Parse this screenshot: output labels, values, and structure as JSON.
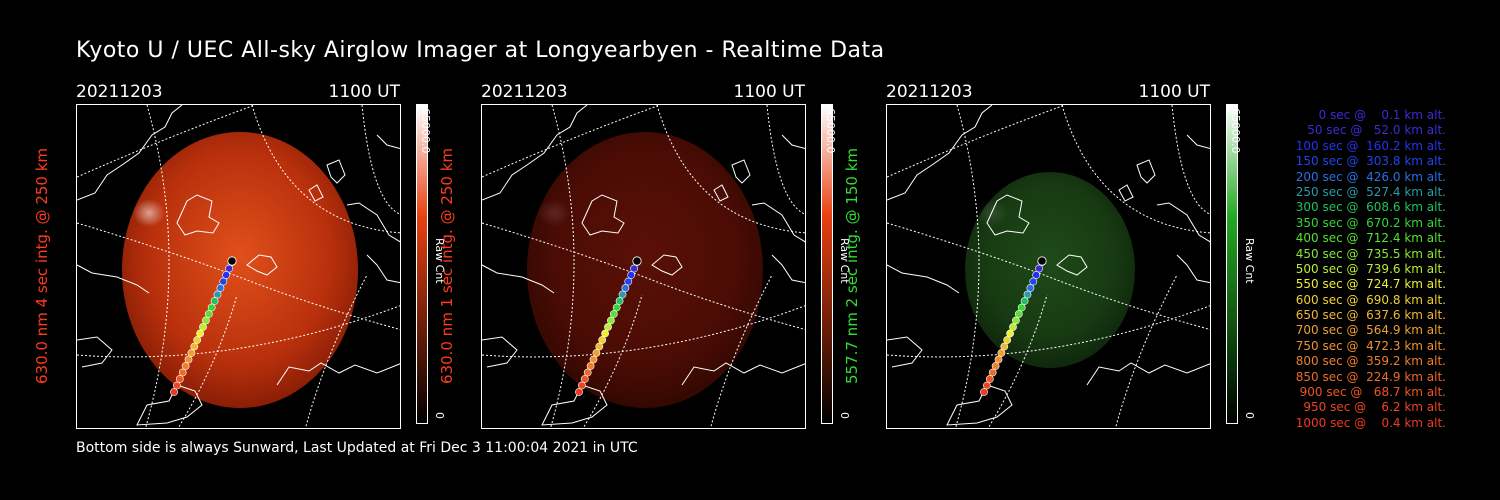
{
  "title": "Kyoto U / UEC All-sky Airglow Imager at Longyearbyen - Realtime Data",
  "footer": "Bottom side is always Sunward, Last Updated at Fri Dec  3 11:00:04 2021 in UTC",
  "panels": [
    {
      "date": "20211203",
      "time": "1100 UT",
      "ylabel": "630.0 nm 4 sec intg. @ 250 km",
      "label_color": "#ff3b1e",
      "image_tone": "bright-red",
      "colorbar_top": "#ffffff",
      "colorbar_mid": "#e84010",
      "colorbar_max": "65000.0",
      "colorbar_min": "0",
      "colorbar_label": "Raw Cnt"
    },
    {
      "date": "20211203",
      "time": "1100 UT",
      "ylabel": "630.0 nm 1 sec intg. @ 250 km",
      "label_color": "#ff3b1e",
      "image_tone": "dark-red",
      "colorbar_top": "#ffffff",
      "colorbar_mid": "#e84010",
      "colorbar_max": "65000.0",
      "colorbar_min": "0",
      "colorbar_label": "Raw Cnt"
    },
    {
      "date": "20211203",
      "time": "1100 UT",
      "ylabel": "557.7 nm 2 sec intg. @ 150 km",
      "label_color": "#33dd33",
      "image_tone": "dark-green",
      "colorbar_top": "#ffffff",
      "colorbar_mid": "#22aa22",
      "colorbar_max": "65000.0",
      "colorbar_min": "0",
      "colorbar_label": "Raw Cnt"
    }
  ],
  "trajectory": [
    {
      "label": "   0 sec @    0.1 km alt.",
      "color": "#3b2bd8"
    },
    {
      "label": "  50 sec @   52.0 km alt.",
      "color": "#3b2bd8"
    },
    {
      "label": " 100 sec @  160.2 km alt.",
      "color": "#2233ee"
    },
    {
      "label": " 150 sec @  303.8 km alt.",
      "color": "#2244ee"
    },
    {
      "label": " 200 sec @  426.0 km alt.",
      "color": "#2a6ee8"
    },
    {
      "label": " 250 sec @  527.4 km alt.",
      "color": "#2a9aa8"
    },
    {
      "label": " 300 sec @  608.6 km alt.",
      "color": "#22c060"
    },
    {
      "label": " 350 sec @  670.2 km alt.",
      "color": "#33d633"
    },
    {
      "label": " 400 sec @  712.4 km alt.",
      "color": "#55e033"
    },
    {
      "label": " 450 sec @  735.5 km alt.",
      "color": "#88e833"
    },
    {
      "label": " 500 sec @  739.6 km alt.",
      "color": "#bbee33"
    },
    {
      "label": " 550 sec @  724.7 km alt.",
      "color": "#eeee33"
    },
    {
      "label": " 600 sec @  690.8 km alt.",
      "color": "#f0d030"
    },
    {
      "label": " 650 sec @  637.6 km alt.",
      "color": "#f0b830"
    },
    {
      "label": " 700 sec @  564.9 km alt.",
      "color": "#f0a030"
    },
    {
      "label": " 750 sec @  472.3 km alt.",
      "color": "#f09030"
    },
    {
      "label": " 800 sec @  359.2 km alt.",
      "color": "#f07e2a"
    },
    {
      "label": " 850 sec @  224.9 km alt.",
      "color": "#ee6a26"
    },
    {
      "label": " 900 sec @   68.7 km alt.",
      "color": "#ee5522"
    },
    {
      "label": " 950 sec @    6.2 km alt.",
      "color": "#ee4422"
    },
    {
      "label": "1000 sec @    0.4 km alt.",
      "color": "#ee3a22"
    }
  ]
}
